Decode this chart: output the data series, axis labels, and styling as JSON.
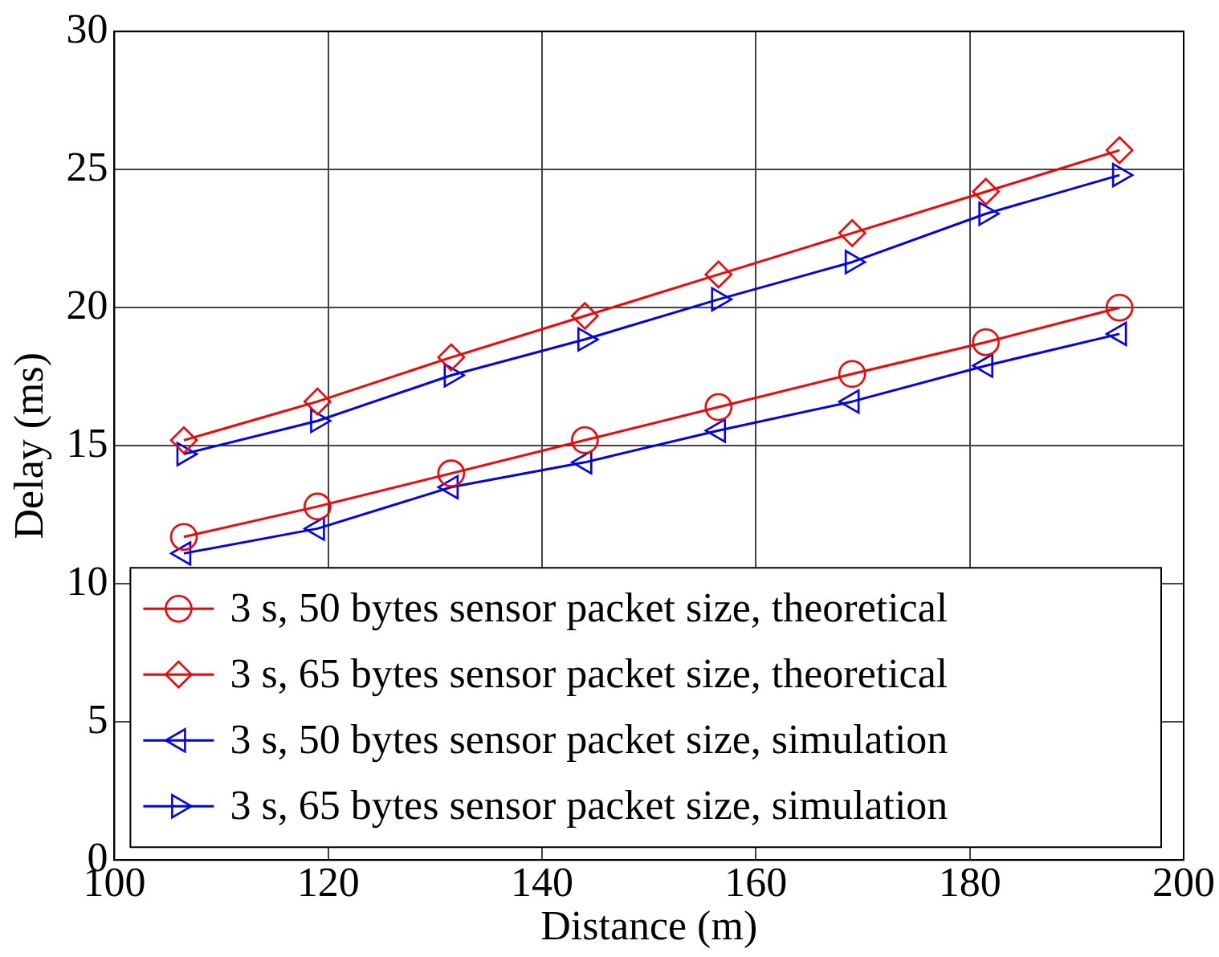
{
  "chart_data": {
    "type": "line",
    "xlabel": "Distance (m)",
    "ylabel": "Delay (ms)",
    "x": [
      106.5,
      119,
      131.5,
      144,
      156.5,
      169,
      181.5,
      194
    ],
    "series": [
      {
        "name": "3 s, 50 bytes sensor packet size, theoretical",
        "color": "#ff0000",
        "marker": "circle",
        "values": [
          11.7,
          12.8,
          14.0,
          15.2,
          16.4,
          17.6,
          18.75,
          20.0
        ]
      },
      {
        "name": "3 s, 65 bytes sensor packet size, theoretical",
        "color": "#ff0000",
        "marker": "diamond",
        "values": [
          15.2,
          16.6,
          18.2,
          19.7,
          21.2,
          22.7,
          24.2,
          25.7
        ]
      },
      {
        "name": "3 s, 50 bytes sensor packet size, simulation",
        "color": "#0000ff",
        "marker": "triangle-left",
        "values": [
          11.1,
          12.0,
          13.5,
          14.4,
          15.55,
          16.6,
          17.9,
          19.05
        ]
      },
      {
        "name": "3 s, 65 bytes sensor packet size, simulation",
        "color": "#0000ff",
        "marker": "triangle-right",
        "values": [
          14.7,
          15.9,
          17.55,
          18.85,
          20.3,
          21.65,
          23.4,
          24.8
        ]
      }
    ],
    "xlim": [
      100,
      200
    ],
    "xticks": [
      100,
      120,
      140,
      160,
      180,
      200
    ],
    "ylim": [
      0,
      30
    ],
    "yticks": [
      0,
      5,
      10,
      15,
      20,
      25,
      30
    ],
    "grid": true,
    "legend": "bottom",
    "line_style": "solid"
  }
}
